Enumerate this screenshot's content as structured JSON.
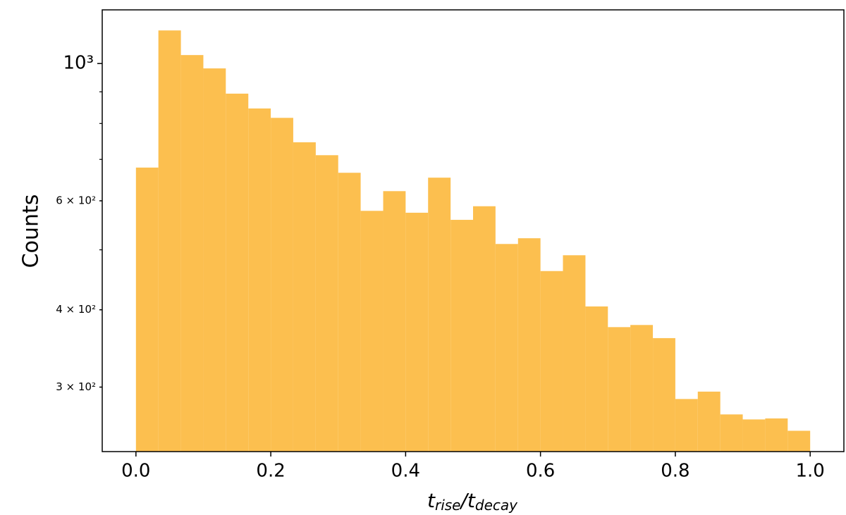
{
  "chart_data": {
    "type": "histogram",
    "xlabel_parts": [
      "t",
      "rise",
      "/",
      "t",
      "decay"
    ],
    "ylabel": "Counts",
    "bins": [
      0,
      0.0333,
      0.0667,
      0.1,
      0.1333,
      0.1667,
      0.2,
      0.2333,
      0.2667,
      0.3,
      0.3333,
      0.3667,
      0.4,
      0.4333,
      0.4667,
      0.5,
      0.5333,
      0.5667,
      0.6,
      0.6333,
      0.6667,
      0.7,
      0.7333,
      0.7667,
      0.8,
      0.8333,
      0.8667,
      0.9,
      0.9333,
      0.9667,
      1
    ],
    "values": [
      679,
      1131,
      1032,
      982,
      894,
      846,
      817,
      746,
      711,
      666,
      578,
      622,
      574,
      654,
      559,
      588,
      511,
      522,
      462,
      490,
      405,
      375,
      378,
      360,
      287,
      295,
      271,
      266,
      267,
      255
    ],
    "color": "#fcbf4f",
    "xlim": [
      -0.05,
      1.05
    ],
    "xticks": [
      {
        "value": 0,
        "label": "0.0"
      },
      0.2,
      0.4,
      0.6,
      0.8,
      {
        "value": 1,
        "label": "1.0"
      }
    ],
    "ylim": [
      236,
      1221
    ],
    "yscale": "log",
    "yticks": [
      {
        "value": 1000,
        "label": "10³"
      },
      {
        "value": 600,
        "label": "6 × 10²"
      },
      {
        "value": 400,
        "label": "4 × 10²"
      },
      {
        "value": 300,
        "label": "3 × 10²"
      }
    ],
    "yminorticks": [
      500,
      700,
      800,
      900
    ]
  }
}
